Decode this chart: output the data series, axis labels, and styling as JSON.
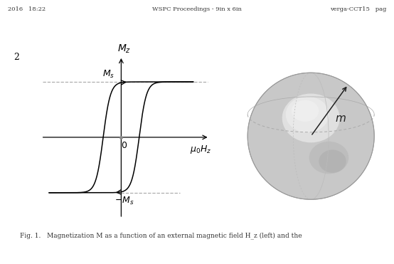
{
  "header_text": "WSPC Proceedings - 9in x 6in",
  "header_left": "2016   18:22",
  "header_right": "verga-CCT15   pag",
  "page_number": "2",
  "bg_color": "#ffffff",
  "hysteresis": {
    "Ms": 0.82,
    "Hc": 0.55,
    "steepness": 4.5,
    "curve_color": "#000000",
    "dashed_color": "#aaaaaa",
    "axis_color": "#000000"
  },
  "sphere": {
    "base_color": "#d4d4d4",
    "highlight_color": "#f0f0f0",
    "edge_color": "#aaaaaa",
    "dashed_color": "#aaaaaa",
    "arrow_color": "#333333",
    "label": "m"
  },
  "caption": "Fig. 1.   Magnetization M as a function of an external magnetic field H_z (left) and the"
}
